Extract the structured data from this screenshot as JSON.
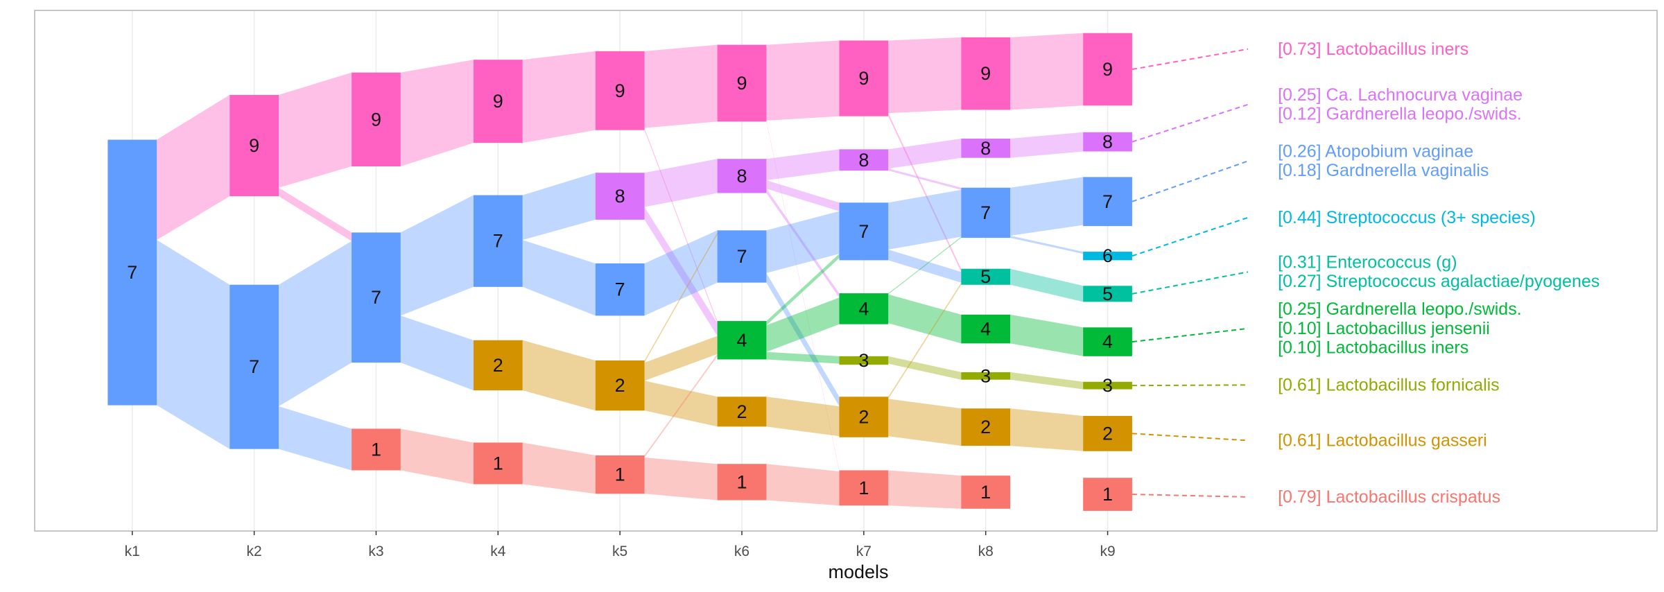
{
  "chart_data": {
    "type": "alluvial",
    "xlabel": "models",
    "models": [
      "k1",
      "k2",
      "k3",
      "k4",
      "k5",
      "k6",
      "k7",
      "k8",
      "k9"
    ],
    "colors": {
      "1": "#F8766D",
      "2": "#D39200",
      "3": "#93AA00",
      "4": "#00BA38",
      "5": "#00C19F",
      "6": "#00B9E3",
      "7": "#619CFF",
      "8": "#DB72FB",
      "9": "#FF61C3"
    },
    "nodes": [
      {
        "model": "k1",
        "topic": "7",
        "y0": 131,
        "y1": 380
      },
      {
        "model": "k2",
        "topic": "9",
        "y0": 89,
        "y1": 184
      },
      {
        "model": "k2",
        "topic": "7",
        "y0": 267,
        "y1": 421
      },
      {
        "model": "k3",
        "topic": "9",
        "y0": 68,
        "y1": 156
      },
      {
        "model": "k3",
        "topic": "7",
        "y0": 218,
        "y1": 340
      },
      {
        "model": "k3",
        "topic": "1",
        "y0": 402,
        "y1": 441
      },
      {
        "model": "k4",
        "topic": "9",
        "y0": 56,
        "y1": 134
      },
      {
        "model": "k4",
        "topic": "7",
        "y0": 183,
        "y1": 269
      },
      {
        "model": "k4",
        "topic": "2",
        "y0": 319,
        "y1": 366
      },
      {
        "model": "k4",
        "topic": "1",
        "y0": 415,
        "y1": 454
      },
      {
        "model": "k5",
        "topic": "9",
        "y0": 48,
        "y1": 122
      },
      {
        "model": "k5",
        "topic": "8",
        "y0": 162,
        "y1": 206
      },
      {
        "model": "k5",
        "topic": "7",
        "y0": 247,
        "y1": 296
      },
      {
        "model": "k5",
        "topic": "2",
        "y0": 338,
        "y1": 385
      },
      {
        "model": "k5",
        "topic": "1",
        "y0": 427,
        "y1": 463
      },
      {
        "model": "k6",
        "topic": "9",
        "y0": 42,
        "y1": 114
      },
      {
        "model": "k6",
        "topic": "8",
        "y0": 149,
        "y1": 181
      },
      {
        "model": "k6",
        "topic": "7",
        "y0": 216,
        "y1": 265
      },
      {
        "model": "k6",
        "topic": "4",
        "y0": 301,
        "y1": 337
      },
      {
        "model": "k6",
        "topic": "2",
        "y0": 372,
        "y1": 400
      },
      {
        "model": "k6",
        "topic": "1",
        "y0": 435,
        "y1": 469
      },
      {
        "model": "k7",
        "topic": "9",
        "y0": 38,
        "y1": 109
      },
      {
        "model": "k7",
        "topic": "8",
        "y0": 140,
        "y1": 160
      },
      {
        "model": "k7",
        "topic": "7",
        "y0": 190,
        "y1": 244
      },
      {
        "model": "k7",
        "topic": "4",
        "y0": 275,
        "y1": 304
      },
      {
        "model": "k7",
        "topic": "3",
        "y0": 334,
        "y1": 342
      },
      {
        "model": "k7",
        "topic": "2",
        "y0": 372,
        "y1": 410
      },
      {
        "model": "k7",
        "topic": "1",
        "y0": 441,
        "y1": 474
      },
      {
        "model": "k8",
        "topic": "9",
        "y0": 35,
        "y1": 103
      },
      {
        "model": "k8",
        "topic": "8",
        "y0": 130,
        "y1": 148
      },
      {
        "model": "k8",
        "topic": "7",
        "y0": 176,
        "y1": 223
      },
      {
        "model": "k8",
        "topic": "5",
        "y0": 252,
        "y1": 267
      },
      {
        "model": "k8",
        "topic": "4",
        "y0": 295,
        "y1": 322
      },
      {
        "model": "k8",
        "topic": "3",
        "y0": 349,
        "y1": 356
      },
      {
        "model": "k8",
        "topic": "2",
        "y0": 383,
        "y1": 418
      },
      {
        "model": "k8",
        "topic": "1",
        "y0": 446,
        "y1": 477
      },
      {
        "model": "k9",
        "topic": "9",
        "y0": 31,
        "y1": 99
      },
      {
        "model": "k9",
        "topic": "8",
        "y0": 124,
        "y1": 142
      },
      {
        "model": "k9",
        "topic": "7",
        "y0": 166,
        "y1": 212
      },
      {
        "model": "k9",
        "topic": "6",
        "y0": 236,
        "y1": 244
      },
      {
        "model": "k9",
        "topic": "5",
        "y0": 268,
        "y1": 283
      },
      {
        "model": "k9",
        "topic": "4",
        "y0": 307,
        "y1": 334
      },
      {
        "model": "k9",
        "topic": "3",
        "y0": 358,
        "y1": 365
      },
      {
        "model": "k9",
        "topic": "2",
        "y0": 390,
        "y1": 423
      },
      {
        "model": "k9",
        "topic": "1",
        "y0": 448,
        "y1": 479
      }
    ],
    "flows": [
      {
        "from": "k1",
        "to": "k2",
        "topic": "9",
        "a0": 131,
        "a1": 225,
        "b0": 89,
        "b1": 184
      },
      {
        "from": "k1",
        "to": "k2",
        "topic": "7",
        "a0": 225,
        "a1": 380,
        "b0": 267,
        "b1": 421
      },
      {
        "from": "k2",
        "to": "k3",
        "topic": "9",
        "a0": 89,
        "a1": 176,
        "b0": 68,
        "b1": 156
      },
      {
        "from": "k2",
        "to": "k3",
        "topic": "9",
        "a0": 176,
        "a1": 184,
        "b0": 218,
        "b1": 226
      },
      {
        "from": "k2",
        "to": "k3",
        "topic": "7",
        "a0": 267,
        "a1": 381,
        "b0": 226,
        "b1": 340
      },
      {
        "from": "k2",
        "to": "k3",
        "topic": "7",
        "a0": 381,
        "a1": 421,
        "b0": 402,
        "b1": 441
      },
      {
        "from": "k3",
        "to": "k4",
        "topic": "9",
        "a0": 68,
        "a1": 156,
        "b0": 56,
        "b1": 134
      },
      {
        "from": "k3",
        "to": "k4",
        "topic": "7",
        "a0": 218,
        "a1": 296,
        "b0": 183,
        "b1": 269
      },
      {
        "from": "k3",
        "to": "k4",
        "topic": "7",
        "a0": 296,
        "a1": 340,
        "b0": 319,
        "b1": 366
      },
      {
        "from": "k3",
        "to": "k4",
        "topic": "1",
        "a0": 402,
        "a1": 441,
        "b0": 415,
        "b1": 454
      },
      {
        "from": "k4",
        "to": "k5",
        "topic": "9",
        "a0": 56,
        "a1": 134,
        "b0": 48,
        "b1": 122
      },
      {
        "from": "k4",
        "to": "k5",
        "topic": "7",
        "a0": 183,
        "a1": 225,
        "b0": 162,
        "b1": 206
      },
      {
        "from": "k4",
        "to": "k5",
        "topic": "7",
        "a0": 225,
        "a1": 269,
        "b0": 247,
        "b1": 296
      },
      {
        "from": "k4",
        "to": "k5",
        "topic": "2",
        "a0": 319,
        "a1": 366,
        "b0": 338,
        "b1": 385
      },
      {
        "from": "k4",
        "to": "k5",
        "topic": "1",
        "a0": 415,
        "a1": 454,
        "b0": 427,
        "b1": 463
      },
      {
        "from": "k5",
        "to": "k6",
        "topic": "9",
        "a0": 48,
        "a1": 120,
        "b0": 42,
        "b1": 114
      },
      {
        "from": "k5",
        "to": "k6",
        "topic": "9",
        "a0": 120,
        "a1": 122,
        "b0": 301,
        "b1": 303
      },
      {
        "from": "k5",
        "to": "k6",
        "topic": "8",
        "a0": 162,
        "a1": 194,
        "b0": 149,
        "b1": 181
      },
      {
        "from": "k5",
        "to": "k6",
        "topic": "8",
        "a0": 194,
        "a1": 206,
        "b0": 303,
        "b1": 315
      },
      {
        "from": "k5",
        "to": "k6",
        "topic": "7",
        "a0": 247,
        "a1": 249,
        "b0": 216,
        "b1": 218
      },
      {
        "from": "k5",
        "to": "k6",
        "topic": "7",
        "a0": 249,
        "a1": 296,
        "b0": 218,
        "b1": 265
      },
      {
        "from": "k5",
        "to": "k6",
        "topic": "2",
        "a0": 338,
        "a1": 340,
        "b0": 218,
        "b1": 220
      },
      {
        "from": "k5",
        "to": "k6",
        "topic": "2",
        "a0": 340,
        "a1": 357,
        "b0": 315,
        "b1": 332
      },
      {
        "from": "k5",
        "to": "k6",
        "topic": "2",
        "a0": 357,
        "a1": 385,
        "b0": 372,
        "b1": 400
      },
      {
        "from": "k5",
        "to": "k6",
        "topic": "1",
        "a0": 427,
        "a1": 429,
        "b0": 332,
        "b1": 334
      },
      {
        "from": "k5",
        "to": "k6",
        "topic": "1",
        "a0": 429,
        "a1": 463,
        "b0": 435,
        "b1": 469
      },
      {
        "from": "k6",
        "to": "k7",
        "topic": "9",
        "a0": 42,
        "a1": 113,
        "b0": 38,
        "b1": 109
      },
      {
        "from": "k6",
        "to": "k7",
        "topic": "9",
        "a0": 113,
        "a1": 114,
        "b0": 441,
        "b1": 442
      },
      {
        "from": "k6",
        "to": "k7",
        "topic": "8",
        "a0": 149,
        "a1": 169,
        "b0": 140,
        "b1": 160
      },
      {
        "from": "k6",
        "to": "k7",
        "topic": "8",
        "a0": 169,
        "a1": 177,
        "b0": 190,
        "b1": 198
      },
      {
        "from": "k6",
        "to": "k7",
        "topic": "8",
        "a0": 177,
        "a1": 181,
        "b0": 275,
        "b1": 279
      },
      {
        "from": "k6",
        "to": "k7",
        "topic": "7",
        "a0": 216,
        "a1": 256,
        "b0": 198,
        "b1": 238
      },
      {
        "from": "k6",
        "to": "k7",
        "topic": "7",
        "a0": 256,
        "a1": 265,
        "b0": 372,
        "b1": 381
      },
      {
        "from": "k6",
        "to": "k7",
        "topic": "4",
        "a0": 301,
        "a1": 305,
        "b0": 238,
        "b1": 242
      },
      {
        "from": "k6",
        "to": "k7",
        "topic": "4",
        "a0": 305,
        "a1": 330,
        "b0": 279,
        "b1": 304
      },
      {
        "from": "k6",
        "to": "k7",
        "topic": "4",
        "a0": 330,
        "a1": 337,
        "b0": 334,
        "b1": 341
      },
      {
        "from": "k6",
        "to": "k7",
        "topic": "2",
        "a0": 372,
        "a1": 400,
        "b0": 381,
        "b1": 409
      },
      {
        "from": "k6",
        "to": "k7",
        "topic": "1",
        "a0": 435,
        "a1": 469,
        "b0": 442,
        "b1": 474
      },
      {
        "from": "k7",
        "to": "k8",
        "topic": "9",
        "a0": 38,
        "a1": 106,
        "b0": 35,
        "b1": 103
      },
      {
        "from": "k7",
        "to": "k8",
        "topic": "9",
        "a0": 106,
        "a1": 109,
        "b0": 252,
        "b1": 255
      },
      {
        "from": "k7",
        "to": "k8",
        "topic": "8",
        "a0": 140,
        "a1": 158,
        "b0": 130,
        "b1": 148
      },
      {
        "from": "k7",
        "to": "k8",
        "topic": "8",
        "a0": 158,
        "a1": 160,
        "b0": 176,
        "b1": 178
      },
      {
        "from": "k7",
        "to": "k8",
        "topic": "7",
        "a0": 190,
        "a1": 234,
        "b0": 178,
        "b1": 222
      },
      {
        "from": "k7",
        "to": "k8",
        "topic": "7",
        "a0": 234,
        "a1": 244,
        "b0": 255,
        "b1": 265
      },
      {
        "from": "k7",
        "to": "k8",
        "topic": "4",
        "a0": 275,
        "a1": 276,
        "b0": 222,
        "b1": 223
      },
      {
        "from": "k7",
        "to": "k8",
        "topic": "4",
        "a0": 276,
        "a1": 303,
        "b0": 295,
        "b1": 322
      },
      {
        "from": "k7",
        "to": "k8",
        "topic": "3",
        "a0": 334,
        "a1": 341,
        "b0": 349,
        "b1": 356
      },
      {
        "from": "k7",
        "to": "k8",
        "topic": "2",
        "a0": 372,
        "a1": 374,
        "b0": 265,
        "b1": 267
      },
      {
        "from": "k7",
        "to": "k8",
        "topic": "2",
        "a0": 374,
        "a1": 409,
        "b0": 383,
        "b1": 418
      },
      {
        "from": "k7",
        "to": "k8",
        "topic": "1",
        "a0": 441,
        "a1": 474,
        "b0": 446,
        "b1": 477
      },
      {
        "from": "k8",
        "to": "k9",
        "topic": "9",
        "a0": 35,
        "a1": 103,
        "b0": 31,
        "b1": 99
      },
      {
        "from": "k8",
        "to": "k9",
        "topic": "8",
        "a0": 130,
        "a1": 148,
        "b0": 124,
        "b1": 142
      },
      {
        "from": "k8",
        "to": "k9",
        "topic": "7",
        "a0": 176,
        "a1": 221,
        "b0": 166,
        "b1": 211
      },
      {
        "from": "k8",
        "to": "k9",
        "topic": "7",
        "a0": 221,
        "a1": 223,
        "b0": 236,
        "b1": 238
      },
      {
        "from": "k8",
        "to": "k9",
        "topic": "5",
        "a0": 252,
        "a1": 267,
        "b0": 268,
        "b1": 283
      },
      {
        "from": "k8",
        "to": "k9",
        "topic": "4",
        "a0": 295,
        "a1": 322,
        "b0": 307,
        "b1": 334
      },
      {
        "from": "k8",
        "to": "k9",
        "topic": "3",
        "a0": 349,
        "a1": 356,
        "b0": 358,
        "b1": 365
      },
      {
        "from": "k8",
        "to": "k9",
        "topic": "2",
        "a0": 383,
        "a1": 418,
        "b0": 390,
        "b1": 423
      }
    ],
    "legend": [
      {
        "topic": "9",
        "lines": [
          "[0.73] Lactobacillus iners"
        ]
      },
      {
        "topic": "8",
        "lines": [
          "[0.25] Ca. Lachnocurva vaginae",
          "[0.12] Gardnerella leopo./swids."
        ]
      },
      {
        "topic": "7",
        "lines": [
          "[0.26] Atopobium vaginae",
          "[0.18] Gardnerella vaginalis"
        ]
      },
      {
        "topic": "6",
        "lines": [
          "[0.44] Streptococcus (3+ species)"
        ]
      },
      {
        "topic": "5",
        "lines": [
          "[0.31] Enterococcus (g)",
          "[0.27] Streptococcus agalactiae/pyogenes"
        ]
      },
      {
        "topic": "4",
        "lines": [
          "[0.25] Gardnerella leopo./swids.",
          "[0.10] Lactobacillus jensenii",
          "[0.10] Lactobacillus iners"
        ]
      },
      {
        "topic": "3",
        "lines": [
          "[0.61] Lactobacillus fornicalis"
        ]
      },
      {
        "topic": "2",
        "lines": [
          "[0.61] Lactobacillus gasseri"
        ]
      },
      {
        "topic": "1",
        "lines": [
          "[0.79] Lactobacillus crispatus"
        ]
      }
    ]
  }
}
